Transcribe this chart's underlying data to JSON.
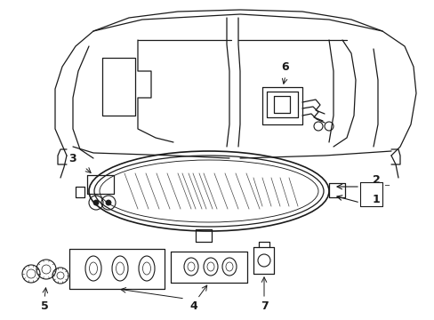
{
  "background_color": "#ffffff",
  "line_color": "#1a1a1a",
  "lw": 0.9,
  "figsize": [
    4.89,
    3.6
  ],
  "dpi": 100
}
